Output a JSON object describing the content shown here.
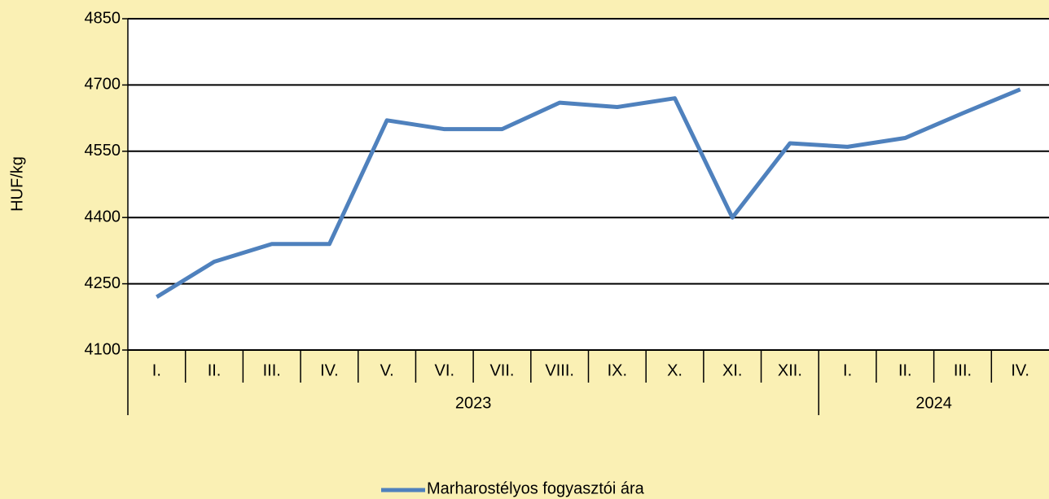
{
  "chart_data": {
    "type": "line",
    "y_axis_label": "HUF/kg",
    "categories": [
      "I.",
      "II.",
      "III.",
      "IV.",
      "V.",
      "VI.",
      "VII.",
      "VIII.",
      "IX.",
      "X.",
      "XI.",
      "XII.",
      "I.",
      "II.",
      "III.",
      "IV."
    ],
    "category_groups": [
      {
        "label": "2023",
        "span": 12
      },
      {
        "label": "2024",
        "span": 4
      }
    ],
    "series": [
      {
        "name": "Marharostélyos fogyasztói ára",
        "color": "#4f81bd",
        "values": [
          4220,
          4300,
          4340,
          4340,
          4620,
          4600,
          4600,
          4660,
          4650,
          4670,
          4400,
          4568,
          4560,
          4580,
          4636,
          4690
        ]
      }
    ],
    "ylim": [
      4100,
      4850
    ],
    "yticks": [
      4100,
      4250,
      4400,
      4550,
      4700,
      4850
    ],
    "grid": true,
    "legend": "bottom"
  }
}
